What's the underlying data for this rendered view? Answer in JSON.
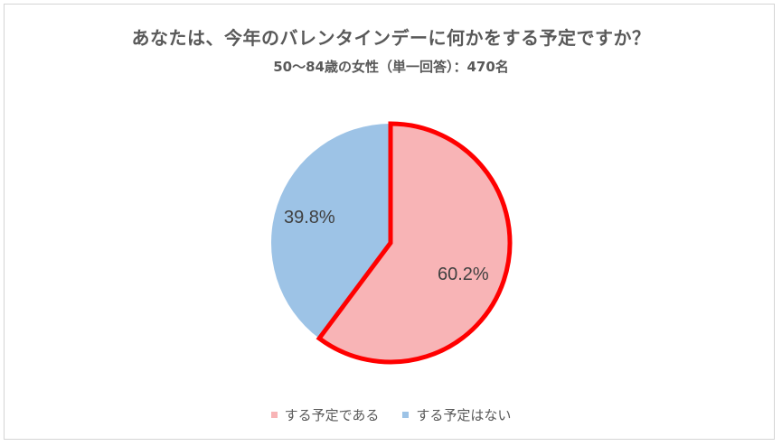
{
  "chart_data": {
    "type": "pie",
    "title": "あなたは、今年のバレンタインデーに何かをする予定ですか？",
    "subtitle": "50～84歳の女性（単一回答）：470名",
    "categories": [
      "する予定である",
      "する予定はない"
    ],
    "values": [
      60.2,
      39.8
    ],
    "unit": "%",
    "colors": [
      "#f8b4b6",
      "#9dc3e6"
    ],
    "highlight": {
      "category": "する予定である",
      "stroke": "#ff0000"
    },
    "data_labels": [
      "60.2%",
      "39.8%"
    ],
    "legend_position": "bottom"
  },
  "title": "あなたは、今年のバレンタインデーに何かをする予定ですか？",
  "subtitle": "50～84歳の女性（単一回答）：470名",
  "labels": {
    "yes": "60.2%",
    "no": "39.8%"
  },
  "legend": [
    {
      "label": "する予定である",
      "color": "#f8b4b6"
    },
    {
      "label": "する予定はない",
      "color": "#9dc3e6"
    }
  ]
}
